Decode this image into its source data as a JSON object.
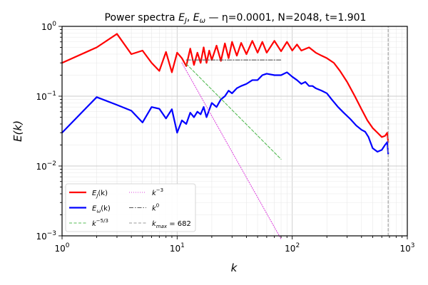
{
  "chart_data": {
    "type": "line",
    "title": "Power spectra E_J, E_ω — η=0.0001, N=2048, t=1.901",
    "title_parts": {
      "prefix": "Power spectra ",
      "ej": "E",
      "ej_sub": "J",
      "sep": ", ",
      "ew": "E",
      "ew_sub": "ω",
      "suffix": " — η=0.0001, N=2048, t=1.901"
    },
    "xlabel": "k",
    "ylabel": "E(k)",
    "xscale": "log",
    "yscale": "log",
    "xlim": [
      1,
      1000
    ],
    "ylim": [
      0.001,
      1
    ],
    "grid": true,
    "legend_location": "lower-left",
    "x_ticks": [
      {
        "value": 1,
        "base": "10",
        "exp": "0"
      },
      {
        "value": 10,
        "base": "10",
        "exp": "1"
      },
      {
        "value": 100,
        "base": "10",
        "exp": "2"
      },
      {
        "value": 1000,
        "base": "10",
        "exp": "3"
      }
    ],
    "y_ticks": [
      {
        "value": 0.001,
        "base": "10",
        "exp": "−3"
      },
      {
        "value": 0.01,
        "base": "10",
        "exp": "−2"
      },
      {
        "value": 0.1,
        "base": "10",
        "exp": "−1"
      },
      {
        "value": 1,
        "base": "10",
        "exp": "0"
      }
    ],
    "series": [
      {
        "name": "E_J(k)",
        "legend": {
          "main": "E",
          "sub": "J",
          "tail": "(k)"
        },
        "color": "#ff0000",
        "style": "solid",
        "k": [
          1,
          2,
          3,
          4,
          5,
          6,
          7,
          8,
          9,
          10,
          11,
          12,
          13,
          14,
          15,
          16,
          17,
          18,
          19,
          20,
          22,
          24,
          26,
          28,
          30,
          33,
          36,
          40,
          45,
          50,
          55,
          60,
          70,
          80,
          90,
          100,
          110,
          120,
          140,
          160,
          180,
          200,
          230,
          260,
          300,
          350,
          400,
          450,
          500,
          550,
          600,
          640,
          670,
          682
        ],
        "values": [
          0.3,
          0.5,
          0.78,
          0.4,
          0.45,
          0.3,
          0.23,
          0.43,
          0.22,
          0.42,
          0.35,
          0.27,
          0.48,
          0.28,
          0.42,
          0.3,
          0.5,
          0.3,
          0.45,
          0.33,
          0.53,
          0.32,
          0.57,
          0.35,
          0.6,
          0.38,
          0.58,
          0.4,
          0.62,
          0.42,
          0.6,
          0.42,
          0.62,
          0.44,
          0.6,
          0.45,
          0.55,
          0.45,
          0.5,
          0.42,
          0.38,
          0.35,
          0.3,
          0.23,
          0.16,
          0.1,
          0.065,
          0.045,
          0.035,
          0.03,
          0.026,
          0.027,
          0.03,
          0.022
        ]
      },
      {
        "name": "E_ω(k)",
        "legend": {
          "main": "E",
          "sub": "ω",
          "tail": "(k)"
        },
        "color": "#0000ff",
        "style": "solid",
        "k": [
          1,
          2,
          3,
          4,
          5,
          6,
          7,
          8,
          9,
          10,
          11,
          12,
          13,
          14,
          15,
          16,
          17,
          18,
          20,
          22,
          24,
          26,
          28,
          30,
          33,
          36,
          40,
          45,
          50,
          55,
          60,
          70,
          80,
          90,
          100,
          110,
          120,
          130,
          140,
          150,
          160,
          180,
          200,
          220,
          250,
          280,
          320,
          360,
          400,
          430,
          460,
          500,
          550,
          600,
          640,
          670,
          682
        ],
        "values": [
          0.03,
          0.097,
          0.075,
          0.062,
          0.042,
          0.07,
          0.066,
          0.048,
          0.065,
          0.03,
          0.045,
          0.04,
          0.058,
          0.05,
          0.06,
          0.055,
          0.07,
          0.05,
          0.08,
          0.07,
          0.09,
          0.1,
          0.12,
          0.11,
          0.13,
          0.14,
          0.15,
          0.17,
          0.17,
          0.2,
          0.21,
          0.2,
          0.2,
          0.22,
          0.19,
          0.17,
          0.15,
          0.16,
          0.14,
          0.14,
          0.13,
          0.12,
          0.11,
          0.09,
          0.07,
          0.058,
          0.047,
          0.038,
          0.033,
          0.031,
          0.026,
          0.018,
          0.016,
          0.017,
          0.02,
          0.022,
          0.015
        ]
      },
      {
        "name": "k^{-5/3}",
        "legend": {
          "main": "k",
          "sup": "−5/3"
        },
        "color": "#55bb55",
        "style": "dashed",
        "k": [
          12,
          80
        ],
        "values": [
          0.29,
          0.0125
        ]
      },
      {
        "name": "k^{-3}",
        "legend": {
          "main": "k",
          "sup": "−3"
        },
        "color": "#dd44dd",
        "style": "dotted",
        "k": [
          11,
          80
        ],
        "values": [
          0.3,
          0.0009
        ]
      },
      {
        "name": "k^0",
        "legend": {
          "main": "k",
          "sup": "0"
        },
        "color": "#555555",
        "style": "dashdot",
        "k": [
          12,
          80
        ],
        "values": [
          0.33,
          0.33
        ]
      },
      {
        "name": "k_max = 682",
        "legend": {
          "main": "k",
          "sub": "max",
          "tail": " = 682"
        },
        "color": "#999999",
        "style": "dashed-vertical",
        "k": [
          682,
          682
        ],
        "values": [
          0.001,
          1
        ]
      }
    ]
  }
}
